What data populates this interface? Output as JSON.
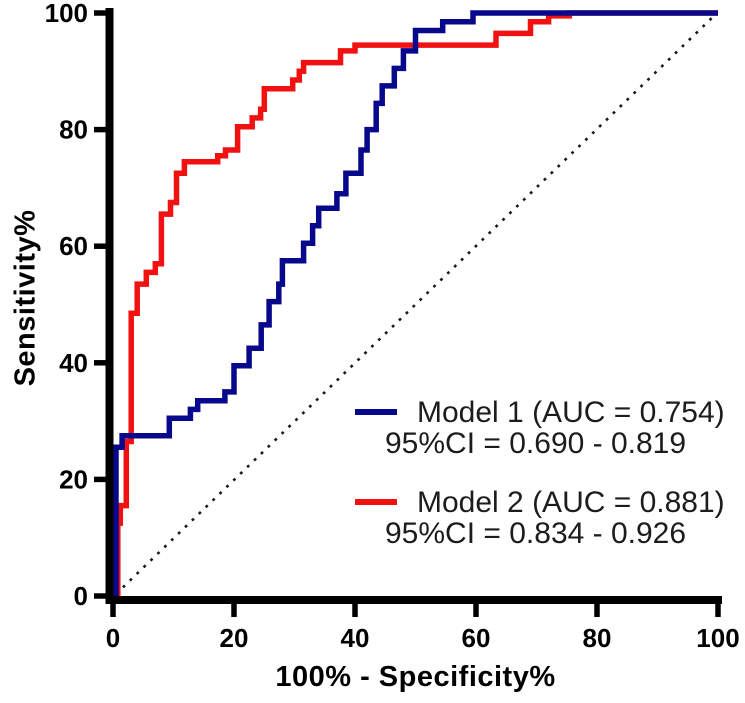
{
  "chart_data": {
    "type": "line",
    "subtype": "roc-step-curves",
    "title": "",
    "xlabel": "100% - Specificity%",
    "ylabel": "Sensitivity%",
    "xlim": [
      0,
      100
    ],
    "ylim": [
      0,
      100
    ],
    "x_ticks": [
      "0",
      "20",
      "40",
      "60",
      "80",
      "100"
    ],
    "y_ticks": [
      "0",
      "20",
      "40",
      "60",
      "80",
      "100"
    ],
    "grid": false,
    "legend_position": "inside-lower-right",
    "axis_color": "#000000",
    "tick_label_color": "#000000",
    "reference_line": {
      "name": "chance-diagonal",
      "style": "dotted",
      "color": "#1a1a1a",
      "from": [
        0,
        0
      ],
      "to": [
        100,
        100
      ]
    },
    "series": [
      {
        "name": "Model 1",
        "label": "Model 1 (AUC = 0.754)",
        "ci_label": "95%CI = 0.690 - 0.819",
        "auc": "0.754",
        "ci_low": "0.690",
        "ci_high": "0.819",
        "color": "#08088c",
        "points": [
          [
            0.5,
            0
          ],
          [
            0.5,
            25.5
          ],
          [
            1.5,
            25.5
          ],
          [
            1.5,
            27.5
          ],
          [
            9.3,
            27.5
          ],
          [
            9.3,
            30.5
          ],
          [
            12.8,
            30.5
          ],
          [
            12.8,
            32
          ],
          [
            14,
            32
          ],
          [
            14,
            33.5
          ],
          [
            18.5,
            33.5
          ],
          [
            18.5,
            35
          ],
          [
            20,
            35
          ],
          [
            20,
            39.5
          ],
          [
            22.5,
            39.5
          ],
          [
            22.5,
            42.5
          ],
          [
            24.5,
            42.5
          ],
          [
            24.5,
            46.5
          ],
          [
            25.8,
            46.5
          ],
          [
            25.8,
            50.5
          ],
          [
            27.4,
            50.5
          ],
          [
            27.4,
            53.5
          ],
          [
            28,
            53.5
          ],
          [
            28,
            57.5
          ],
          [
            31.5,
            57.5
          ],
          [
            31.5,
            60.5
          ],
          [
            33,
            60.5
          ],
          [
            33,
            63.5
          ],
          [
            34,
            63.5
          ],
          [
            34,
            66.5
          ],
          [
            37,
            66.5
          ],
          [
            37,
            69
          ],
          [
            38.5,
            69
          ],
          [
            38.5,
            72.5
          ],
          [
            41,
            72.5
          ],
          [
            41,
            76.5
          ],
          [
            42,
            76.5
          ],
          [
            42,
            80
          ],
          [
            43.5,
            80
          ],
          [
            43.5,
            84.5
          ],
          [
            44.5,
            84.5
          ],
          [
            44.5,
            87.5
          ],
          [
            46.5,
            87.5
          ],
          [
            46.5,
            90.5
          ],
          [
            48,
            90.5
          ],
          [
            48,
            93.5
          ],
          [
            50,
            93.5
          ],
          [
            50,
            97
          ],
          [
            54.5,
            97
          ],
          [
            54.5,
            98.5
          ],
          [
            59.5,
            98.5
          ],
          [
            59.5,
            100
          ],
          [
            100,
            100
          ]
        ]
      },
      {
        "name": "Model 2",
        "label": "Model 2 (AUC = 0.881)",
        "ci_label": "95%CI = 0.834 - 0.926",
        "auc": "0.881",
        "ci_low": "0.834",
        "ci_high": "0.926",
        "color": "#f21111",
        "points": [
          [
            0.8,
            0
          ],
          [
            0.8,
            12.5
          ],
          [
            1.2,
            12.5
          ],
          [
            1.2,
            15.5
          ],
          [
            2.2,
            15.5
          ],
          [
            2.2,
            26.5
          ],
          [
            3,
            26.5
          ],
          [
            3,
            48.5
          ],
          [
            4,
            48.5
          ],
          [
            4,
            53.5
          ],
          [
            5.5,
            53.5
          ],
          [
            5.5,
            55.5
          ],
          [
            7,
            55.5
          ],
          [
            7,
            57
          ],
          [
            8,
            57
          ],
          [
            8,
            65.5
          ],
          [
            9.5,
            65.5
          ],
          [
            9.5,
            67.5
          ],
          [
            10.5,
            67.5
          ],
          [
            10.5,
            72.5
          ],
          [
            11.8,
            72.5
          ],
          [
            11.8,
            74.5
          ],
          [
            17.3,
            74.5
          ],
          [
            17.3,
            75.5
          ],
          [
            18.6,
            75.5
          ],
          [
            18.6,
            76.5
          ],
          [
            20.6,
            76.5
          ],
          [
            20.6,
            80.5
          ],
          [
            23,
            80.5
          ],
          [
            23,
            82
          ],
          [
            24.4,
            82
          ],
          [
            24.4,
            83.5
          ],
          [
            25,
            83.5
          ],
          [
            25,
            87
          ],
          [
            29.7,
            87
          ],
          [
            29.7,
            88.5
          ],
          [
            30.8,
            88.5
          ],
          [
            30.8,
            90
          ],
          [
            31.5,
            90
          ],
          [
            31.5,
            91.5
          ],
          [
            37.6,
            91.5
          ],
          [
            37.6,
            93.5
          ],
          [
            40,
            93.5
          ],
          [
            40,
            94.5
          ],
          [
            63.3,
            94.5
          ],
          [
            63.3,
            96.5
          ],
          [
            69,
            96.5
          ],
          [
            69,
            98.5
          ],
          [
            72,
            98.5
          ],
          [
            72,
            99.5
          ],
          [
            75.4,
            99.5
          ],
          [
            75.4,
            100
          ],
          [
            100,
            100
          ]
        ]
      }
    ]
  }
}
